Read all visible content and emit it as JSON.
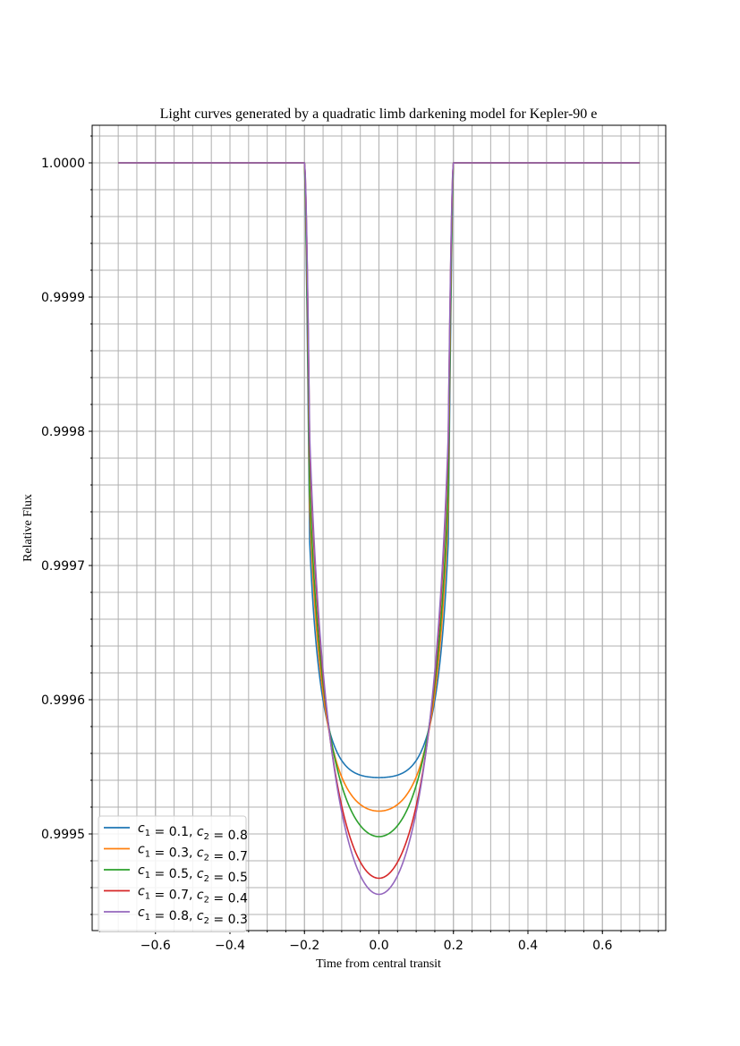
{
  "chart_data": {
    "type": "line",
    "title": "Light curves generated by a quadratic limb darkening model for Kepler-90 e",
    "xlabel": "Time from central transit",
    "ylabel": "Relative Flux",
    "xlim": [
      -0.77,
      0.77
    ],
    "ylim": [
      0.999428,
      1.000028
    ],
    "xticks": [
      -0.6,
      -0.4,
      -0.2,
      0.0,
      0.2,
      0.4,
      0.6
    ],
    "xtick_labels": [
      "−0.6",
      "−0.4",
      "−0.2",
      "0.0",
      "0.2",
      "0.4",
      "0.6"
    ],
    "yticks": [
      0.9995,
      0.9996,
      0.9997,
      0.9998,
      0.9999,
      1.0
    ],
    "ytick_labels": [
      "0.9995",
      "0.9996",
      "0.9997",
      "0.9998",
      "0.9999",
      "1.0000"
    ],
    "grid": true,
    "minor_grid": true,
    "legend_position": "lower-left",
    "x_range": [
      -0.7,
      0.7
    ],
    "transit_half_duration": 0.2,
    "baseline": 1.0,
    "series": [
      {
        "name_parts": [
          "0.1",
          "0.8"
        ],
        "color": "#1f77b4",
        "min": 0.999542
      },
      {
        "name_parts": [
          "0.3",
          "0.7"
        ],
        "color": "#ff7f0e",
        "min": 0.999517
      },
      {
        "name_parts": [
          "0.5",
          "0.5"
        ],
        "color": "#2ca02c",
        "min": 0.999498
      },
      {
        "name_parts": [
          "0.7",
          "0.4"
        ],
        "color": "#d62728",
        "min": 0.999467
      },
      {
        "name_parts": [
          "0.8",
          "0.3"
        ],
        "color": "#9467bd",
        "min": 0.999455
      }
    ]
  }
}
